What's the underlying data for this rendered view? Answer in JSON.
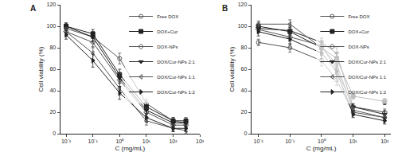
{
  "chart_data": [
    {
      "type": "line",
      "title": "A",
      "x_label": "C (mg/mL)",
      "y_label": "Cell viability (%)",
      "log": "x",
      "legend": "top right",
      "grid": false,
      "xlim": [
        0.006,
        1000
      ],
      "xticks": [
        {
          "value": 0.01,
          "label": "10⁻²"
        },
        {
          "value": 0.1,
          "label": "10⁻¹"
        },
        {
          "value": 1,
          "label": "10⁰"
        },
        {
          "value": 10,
          "label": "10¹"
        },
        {
          "value": 100,
          "label": "10²"
        },
        {
          "value": 1000,
          "label": "10³"
        }
      ],
      "ylim": [
        0,
        120
      ],
      "yticks": [
        0,
        20,
        40,
        60,
        80,
        100,
        120
      ],
      "x": [
        0.01,
        0.1,
        1,
        10,
        100,
        300
      ],
      "series": [
        {
          "name": "Free DOX",
          "color": "#555555",
          "marker": "circle-open",
          "values": [
            98,
            90,
            70,
            28,
            12,
            10
          ],
          "errors": [
            4,
            5,
            5,
            4,
            3,
            3
          ]
        },
        {
          "name": "DOX+Cur",
          "color": "#222222",
          "marker": "square",
          "values": [
            100,
            93,
            55,
            25,
            12,
            12
          ],
          "errors": [
            3,
            4,
            5,
            4,
            3,
            3
          ]
        },
        {
          "name": "DOX-NPs",
          "color": "#555555",
          "marker": "diamond-open",
          "values": [
            95,
            85,
            50,
            20,
            8,
            8
          ],
          "errors": [
            4,
            5,
            6,
            4,
            3,
            3
          ]
        },
        {
          "name": "DOX/Cur-NPs 2:1",
          "color": "#222222",
          "marker": "triangle-down",
          "values": [
            100,
            90,
            52,
            22,
            10,
            10
          ],
          "errors": [
            3,
            4,
            5,
            4,
            3,
            3
          ]
        },
        {
          "name": "DOX/Cur-NPs 1:1",
          "color": "#555555",
          "marker": "triangle-left-open",
          "values": [
            95,
            75,
            42,
            12,
            5,
            3
          ],
          "errors": [
            4,
            6,
            6,
            4,
            3,
            3
          ]
        },
        {
          "name": "DOX/Cur-NPs 1:2",
          "color": "#222222",
          "marker": "triangle-right",
          "values": [
            92,
            68,
            38,
            15,
            5,
            5
          ],
          "errors": [
            4,
            6,
            6,
            4,
            3,
            3
          ]
        }
      ]
    },
    {
      "type": "line",
      "title": "B",
      "x_label": "C (mg/mL)",
      "y_label": "Cell viability (%)",
      "log": "x",
      "legend": "top right",
      "grid": false,
      "xlim": [
        0.006,
        160
      ],
      "xticks": [
        {
          "value": 0.01,
          "label": "10⁻²"
        },
        {
          "value": 0.1,
          "label": "10⁻¹"
        },
        {
          "value": 1,
          "label": "10⁰"
        },
        {
          "value": 10,
          "label": "10¹"
        },
        {
          "value": 100,
          "label": "10²"
        }
      ],
      "ylim": [
        0,
        120
      ],
      "yticks": [
        0,
        20,
        40,
        60,
        80,
        100,
        120
      ],
      "x": [
        0.01,
        0.1,
        1,
        3,
        10,
        100
      ],
      "series": [
        {
          "name": "Free DOX",
          "color": "#555555",
          "marker": "circle-open",
          "values": [
            85,
            80,
            68,
            50,
            20,
            15
          ],
          "errors": [
            3,
            4,
            5,
            5,
            3,
            3
          ]
        },
        {
          "name": "DOX+Cur",
          "color": "#222222",
          "marker": "square",
          "values": [
            100,
            95,
            80,
            70,
            35,
            30
          ],
          "errors": [
            3,
            4,
            5,
            5,
            3,
            3
          ]
        },
        {
          "name": "DOX-NPs",
          "color": "#555555",
          "marker": "diamond-open",
          "values": [
            97,
            90,
            82,
            60,
            25,
            20
          ],
          "errors": [
            3,
            4,
            5,
            5,
            3,
            3
          ]
        },
        {
          "name": "DOX/Cur-NPs 2:1",
          "color": "#222222",
          "marker": "triangle-down",
          "values": [
            98,
            96,
            85,
            75,
            25,
            18
          ],
          "errors": [
            3,
            4,
            4,
            5,
            3,
            3
          ]
        },
        {
          "name": "DOX/Cur-NPs 1:1",
          "color": "#555555",
          "marker": "triangle-left-open",
          "values": [
            102,
            102,
            80,
            65,
            22,
            15
          ],
          "errors": [
            3,
            4,
            5,
            5,
            3,
            3
          ]
        },
        {
          "name": "DOX/Cur-NPs 1:2",
          "color": "#222222",
          "marker": "triangle-right",
          "values": [
            95,
            88,
            75,
            58,
            18,
            12
          ],
          "errors": [
            4,
            5,
            5,
            5,
            3,
            3
          ]
        }
      ]
    }
  ]
}
